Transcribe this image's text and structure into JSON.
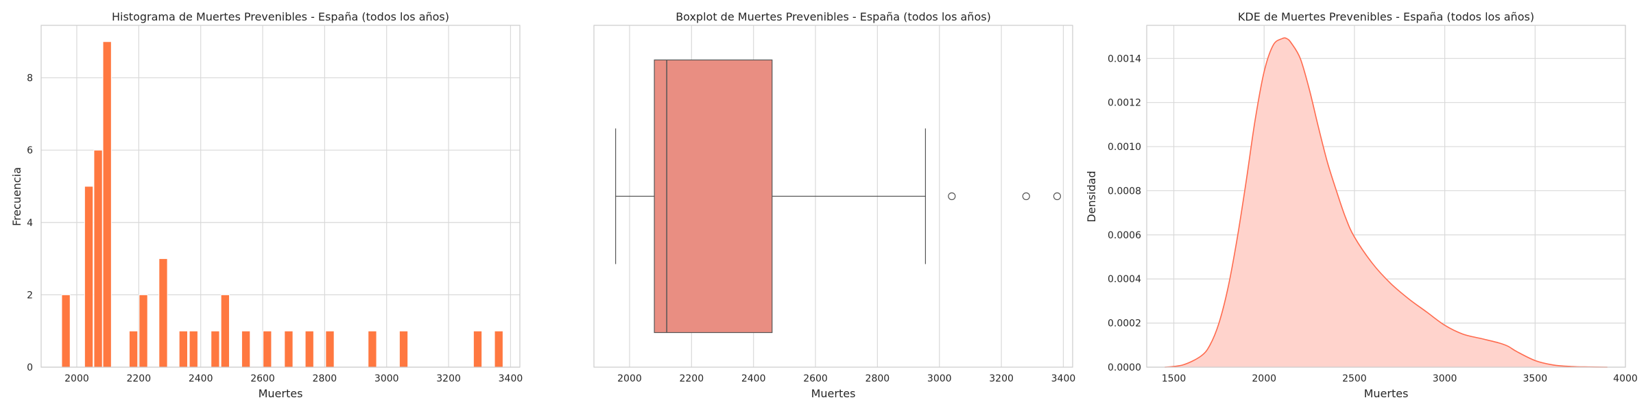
{
  "chart_data": [
    {
      "type": "bar",
      "title": "Histograma de Muertes Prevenibles - España (todos los años)",
      "xlabel": "Muertes",
      "ylabel": "Frecuencia",
      "xlim": [
        1885,
        3430
      ],
      "ylim": [
        0,
        9.45
      ],
      "xticks": [
        2000,
        2200,
        2400,
        2600,
        2800,
        3000,
        3200,
        3400
      ],
      "yticks": [
        0,
        2,
        4,
        6,
        8
      ],
      "bin_width": 29.5,
      "bar_color": "#ff7840",
      "bins": [
        {
          "x": 1966,
          "count": 2
        },
        {
          "x": 2040,
          "count": 5
        },
        {
          "x": 2070,
          "count": 6
        },
        {
          "x": 2099,
          "count": 9
        },
        {
          "x": 2184,
          "count": 1
        },
        {
          "x": 2216,
          "count": 2
        },
        {
          "x": 2280,
          "count": 3
        },
        {
          "x": 2345,
          "count": 1
        },
        {
          "x": 2378,
          "count": 1
        },
        {
          "x": 2448,
          "count": 1
        },
        {
          "x": 2480,
          "count": 2
        },
        {
          "x": 2547,
          "count": 1
        },
        {
          "x": 2616,
          "count": 1
        },
        {
          "x": 2685,
          "count": 1
        },
        {
          "x": 2752,
          "count": 1
        },
        {
          "x": 2818,
          "count": 1
        },
        {
          "x": 2955,
          "count": 1
        },
        {
          "x": 3056,
          "count": 1
        },
        {
          "x": 3295,
          "count": 1
        },
        {
          "x": 3363,
          "count": 1
        }
      ]
    },
    {
      "type": "boxplot",
      "title": "Boxplot de Muertes Prevenibles - España (todos los años)",
      "xlabel": "Muertes",
      "xlim": [
        1885,
        3430
      ],
      "xticks": [
        2000,
        2200,
        2400,
        2600,
        2800,
        3000,
        3200,
        3400
      ],
      "box_color": "#e98e82",
      "whisker_low": 1955,
      "q1": 2080,
      "median": 2120,
      "q3": 2460,
      "whisker_high": 2955,
      "outliers": [
        3040,
        3280,
        3380
      ]
    },
    {
      "type": "area",
      "title": "KDE de Muertes Prevenibles - España (todos los años)",
      "xlabel": "Muertes",
      "ylabel": "Densidad",
      "xlim": [
        1350,
        4000
      ],
      "ylim": [
        0,
        0.00155
      ],
      "xticks": [
        1500,
        2000,
        2500,
        3000,
        3500,
        4000
      ],
      "yticks": [
        0.0,
        0.0002,
        0.0004,
        0.0006,
        0.0008,
        0.001,
        0.0012,
        0.0014
      ],
      "ytick_labels": [
        "0.0000",
        "0.0002",
        "0.0004",
        "0.0006",
        "0.0008",
        "0.0010",
        "0.0012",
        "0.0014"
      ],
      "line_color": "#ff6a4d",
      "fill_color": "#ffd3cc",
      "x": [
        1450,
        1550,
        1650,
        1700,
        1750,
        1800,
        1850,
        1900,
        1950,
        2000,
        2050,
        2100,
        2125,
        2150,
        2200,
        2250,
        2300,
        2350,
        2400,
        2450,
        2500,
        2600,
        2700,
        2800,
        2900,
        3000,
        3100,
        3200,
        3300,
        3350,
        3400,
        3500,
        3600,
        3700,
        3800,
        3900
      ],
      "y": [
        0.0,
        1e-05,
        5e-05,
        0.0001,
        0.0002,
        0.00036,
        0.00058,
        0.00084,
        0.00112,
        0.00134,
        0.00146,
        0.00149,
        0.00149,
        0.00147,
        0.0014,
        0.00126,
        0.00109,
        0.00093,
        0.0008,
        0.00068,
        0.00059,
        0.00047,
        0.00038,
        0.00031,
        0.00025,
        0.00019,
        0.00015,
        0.00013,
        0.00011,
        9.5e-05,
        7e-05,
        3e-05,
        1e-05,
        3e-06,
        1e-06,
        0.0
      ]
    }
  ]
}
